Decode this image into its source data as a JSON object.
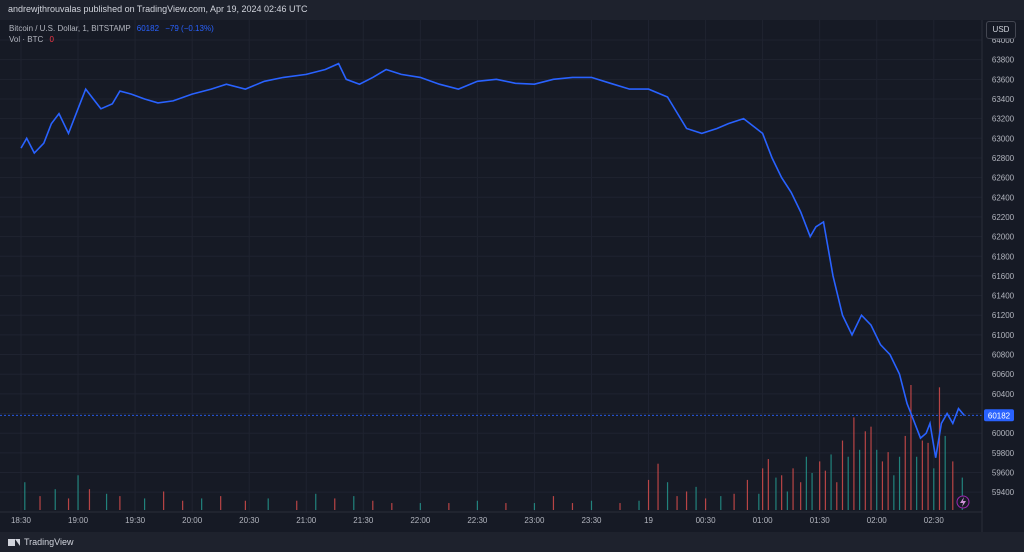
{
  "header": {
    "publisher_text": "andrewjthrouvalas published on TradingView.com, Apr 19, 2024 02:46 UTC"
  },
  "legend": {
    "symbol": "Bitcoin / U.S. Dollar, 1, BITSTAMP",
    "last_value": "60182",
    "change": "−79 (−0.13%)",
    "volume_label": "Vol · BTC",
    "volume_value": "0"
  },
  "currency": "USD",
  "last_price_label": "60182",
  "footer": {
    "brand": "TradingView"
  },
  "colors": {
    "line": "#2962ff",
    "volume_up": "#26a69a",
    "volume_down": "#ef5350",
    "background": "#161a25"
  },
  "chart_data": {
    "type": "line",
    "title": "Bitcoin / U.S. Dollar, 1, BITSTAMP",
    "xlabel": "",
    "ylabel": "",
    "ylim": [
      59300,
      64000
    ],
    "y_ticks": [
      "64000",
      "63800",
      "63600",
      "63400",
      "63200",
      "63000",
      "62800",
      "62600",
      "62400",
      "62200",
      "62000",
      "61800",
      "61600",
      "61400",
      "61200",
      "61000",
      "60800",
      "60600",
      "60400",
      "60200",
      "60000",
      "59800",
      "59600",
      "59400"
    ],
    "x_ticks": [
      "18:30",
      "19:00",
      "19:30",
      "20:00",
      "20:30",
      "21:00",
      "21:30",
      "22:00",
      "22:30",
      "23:00",
      "23:30",
      "19",
      "00:30",
      "01:00",
      "01:30",
      "02:00",
      "02:30"
    ],
    "x_range": [
      "18:30",
      "02:48"
    ],
    "series": [
      {
        "x": [
          "18:30",
          "18:33",
          "18:37",
          "18:42",
          "18:46",
          "18:50",
          "18:55",
          "19:00",
          "19:04",
          "19:08",
          "19:12",
          "19:18",
          "19:22",
          "19:28",
          "19:35",
          "19:42",
          "19:50",
          "20:00",
          "20:10",
          "20:18",
          "20:28",
          "20:38",
          "20:48",
          "21:00",
          "21:10",
          "21:17",
          "21:21",
          "21:28",
          "21:35",
          "21:42",
          "21:50",
          "22:00",
          "22:10",
          "22:20",
          "22:30",
          "22:40",
          "22:50",
          "23:00",
          "23:10",
          "23:20",
          "23:30",
          "23:40",
          "23:50",
          "00:00",
          "00:10",
          "00:20",
          "00:28",
          "00:36",
          "00:42",
          "00:50",
          "01:00",
          "01:05",
          "01:10",
          "01:15",
          "01:20",
          "01:25",
          "01:28",
          "01:32",
          "01:37",
          "01:42",
          "01:47",
          "01:52",
          "01:57",
          "02:02",
          "02:07",
          "02:12",
          "02:16",
          "02:18",
          "02:21",
          "02:23",
          "02:26",
          "02:28",
          "02:31",
          "02:34",
          "02:37",
          "02:40",
          "02:43",
          "02:46"
        ],
        "values": [
          62900,
          63000,
          62850,
          62950,
          63150,
          63250,
          63050,
          63300,
          63500,
          63400,
          63300,
          63350,
          63480,
          63450,
          63400,
          63360,
          63380,
          63450,
          63500,
          63550,
          63500,
          63580,
          63620,
          63650,
          63700,
          63760,
          63600,
          63550,
          63620,
          63700,
          63650,
          63620,
          63550,
          63500,
          63580,
          63600,
          63560,
          63550,
          63600,
          63620,
          63620,
          63560,
          63500,
          63500,
          63420,
          63100,
          63050,
          63100,
          63150,
          63200,
          63050,
          62800,
          62600,
          62450,
          62250,
          62000,
          62100,
          62150,
          61600,
          61200,
          61000,
          61200,
          61100,
          60900,
          60800,
          60600,
          60300,
          60200,
          60050,
          59950,
          60000,
          60100,
          59750,
          60100,
          60200,
          60100,
          60250,
          60182
        ]
      }
    ],
    "volume": {
      "label": "Vol · BTC",
      "x": [
        "18:32",
        "18:40",
        "18:48",
        "18:55",
        "19:00",
        "19:06",
        "19:15",
        "19:22",
        "19:35",
        "19:45",
        "19:55",
        "20:05",
        "20:15",
        "20:28",
        "20:40",
        "20:55",
        "21:05",
        "21:15",
        "21:25",
        "21:35",
        "21:45",
        "22:00",
        "22:15",
        "22:30",
        "22:45",
        "23:00",
        "23:10",
        "23:20",
        "23:30",
        "23:45",
        "23:55",
        "00:00",
        "00:05",
        "00:10",
        "00:15",
        "00:20",
        "00:25",
        "00:30",
        "00:38",
        "00:45",
        "00:52",
        "00:58",
        "01:00",
        "01:03",
        "01:07",
        "01:10",
        "01:13",
        "01:16",
        "01:20",
        "01:23",
        "01:26",
        "01:30",
        "01:33",
        "01:36",
        "01:39",
        "01:42",
        "01:45",
        "01:48",
        "01:51",
        "01:54",
        "01:57",
        "02:00",
        "02:03",
        "02:06",
        "02:09",
        "02:12",
        "02:15",
        "02:18",
        "02:21",
        "02:24",
        "02:27",
        "02:30",
        "02:33",
        "02:36",
        "02:40",
        "02:45"
      ],
      "values": [
        1.2,
        0.6,
        0.9,
        0.5,
        1.5,
        0.9,
        0.7,
        0.6,
        0.5,
        0.8,
        0.4,
        0.5,
        0.6,
        0.4,
        0.5,
        0.4,
        0.7,
        0.5,
        0.6,
        0.4,
        0.3,
        0.3,
        0.3,
        0.4,
        0.3,
        0.3,
        0.6,
        0.3,
        0.4,
        0.3,
        0.4,
        1.3,
        2.0,
        1.2,
        0.6,
        0.8,
        1.0,
        0.5,
        0.6,
        0.7,
        1.3,
        0.7,
        1.8,
        2.2,
        1.4,
        1.5,
        0.8,
        1.8,
        1.2,
        2.3,
        1.6,
        2.1,
        1.7,
        2.4,
        1.2,
        3.0,
        2.3,
        4.0,
        2.6,
        3.4,
        3.6,
        2.6,
        2.1,
        2.5,
        1.5,
        2.3,
        3.2,
        5.4,
        2.3,
        3.0,
        2.9,
        1.8,
        5.3,
        3.2,
        2.1,
        1.4
      ],
      "up": [
        true,
        false,
        true,
        false,
        true,
        false,
        true,
        false,
        true,
        false,
        false,
        true,
        false,
        false,
        true,
        false,
        true,
        false,
        true,
        false,
        false,
        true,
        false,
        true,
        false,
        true,
        false,
        false,
        true,
        false,
        true,
        false,
        false,
        true,
        false,
        false,
        true,
        false,
        true,
        false,
        false,
        true,
        false,
        false,
        true,
        false,
        true,
        false,
        false,
        true,
        true,
        false,
        false,
        true,
        false,
        false,
        true,
        false,
        true,
        false,
        false,
        true,
        false,
        false,
        true,
        true,
        false,
        false,
        true,
        false,
        false,
        true,
        false,
        true,
        false,
        true
      ]
    }
  }
}
